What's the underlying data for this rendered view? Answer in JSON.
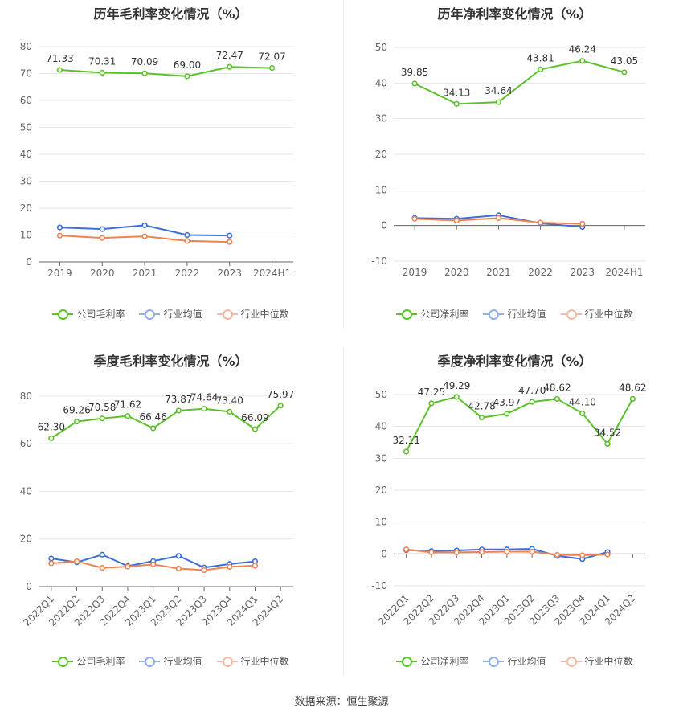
{
  "colors": {
    "company": "#5cc22b",
    "avg": "#3a6fd8",
    "median": "#f08250",
    "avg_legend": "#8fb0ee",
    "median_legend": "#f5b8a0"
  },
  "source": "数据来源：恒生聚源",
  "chart_data": [
    {
      "type": "line",
      "title": "历年毛利率变化情况（%）",
      "categories": [
        "2019",
        "2020",
        "2021",
        "2022",
        "2023",
        "2024H1"
      ],
      "ylim": [
        0,
        80
      ],
      "yticks": [
        0,
        10,
        20,
        30,
        40,
        50,
        60,
        70,
        80
      ],
      "grid": true,
      "legend_position": "bottom",
      "series": [
        {
          "name": "公司毛利率",
          "key": "company",
          "values": [
            71.33,
            70.31,
            70.09,
            69.0,
            72.47,
            72.07
          ],
          "labels": [
            "71.33",
            "70.31",
            "70.09",
            "69.00",
            "72.47",
            "72.07"
          ]
        },
        {
          "name": "行业均值",
          "key": "avg",
          "values": [
            12.8,
            12.2,
            13.6,
            10.0,
            9.8,
            null
          ]
        },
        {
          "name": "行业中位数",
          "key": "median",
          "values": [
            9.8,
            8.9,
            9.5,
            7.8,
            7.4,
            null
          ]
        }
      ]
    },
    {
      "type": "line",
      "title": "历年净利率变化情况（%）",
      "categories": [
        "2019",
        "2020",
        "2021",
        "2022",
        "2023",
        "2024H1"
      ],
      "ylim": [
        -10,
        50
      ],
      "yticks": [
        -10,
        0,
        10,
        20,
        30,
        40,
        50
      ],
      "grid": true,
      "legend_position": "bottom",
      "series": [
        {
          "name": "公司净利率",
          "key": "company",
          "values": [
            39.85,
            34.13,
            34.64,
            43.81,
            46.24,
            43.05
          ],
          "labels": [
            "39.85",
            "34.13",
            "34.64",
            "43.81",
            "46.24",
            "43.05"
          ]
        },
        {
          "name": "行业均值",
          "key": "avg",
          "values": [
            2.1,
            1.9,
            2.9,
            0.6,
            -0.4,
            null
          ]
        },
        {
          "name": "行业中位数",
          "key": "median",
          "values": [
            1.9,
            1.4,
            2.1,
            0.8,
            0.5,
            null
          ]
        }
      ]
    },
    {
      "type": "line",
      "title": "季度毛利率变化情况（%）",
      "categories": [
        "2022Q1",
        "2022Q2",
        "2022Q3",
        "2022Q4",
        "2023Q1",
        "2023Q2",
        "2023Q3",
        "2023Q4",
        "2024Q1",
        "2024Q2"
      ],
      "ylim": [
        0,
        85
      ],
      "yticks": [
        0,
        20,
        40,
        60,
        80
      ],
      "grid": true,
      "legend_position": "bottom",
      "series": [
        {
          "name": "公司毛利率",
          "key": "company",
          "values": [
            62.3,
            69.26,
            70.58,
            71.62,
            66.46,
            73.87,
            74.64,
            73.4,
            66.09,
            75.97
          ],
          "labels": [
            "62.30",
            "69.26",
            "70.58",
            "71.62",
            "66.46",
            "73.87",
            "74.64",
            "73.40",
            "66.09",
            "75.97"
          ]
        },
        {
          "name": "行业均值",
          "key": "avg",
          "values": [
            11.8,
            10.2,
            13.4,
            8.6,
            10.7,
            12.9,
            8.0,
            9.5,
            10.6,
            null
          ]
        },
        {
          "name": "行业中位数",
          "key": "median",
          "values": [
            9.8,
            10.6,
            7.9,
            8.4,
            9.3,
            7.6,
            6.9,
            8.3,
            8.8,
            null
          ]
        }
      ]
    },
    {
      "type": "line",
      "title": "季度净利率变化情况（%）",
      "categories": [
        "2022Q1",
        "2022Q2",
        "2022Q3",
        "2022Q4",
        "2023Q1",
        "2023Q2",
        "2023Q3",
        "2023Q4",
        "2024Q1",
        "2024Q2"
      ],
      "ylim": [
        -10,
        50
      ],
      "yticks": [
        -10,
        0,
        10,
        20,
        30,
        40,
        50
      ],
      "grid": true,
      "legend_position": "bottom",
      "series": [
        {
          "name": "公司净利率",
          "key": "company",
          "values": [
            32.11,
            47.25,
            49.29,
            42.78,
            43.97,
            47.7,
            48.62,
            44.1,
            34.52,
            48.62
          ],
          "labels": [
            "32.11",
            "47.25",
            "49.29",
            "42.78",
            "43.97",
            "47.70",
            "48.62",
            "44.10",
            "34.52",
            "48.62"
          ]
        },
        {
          "name": "行业均值",
          "key": "avg",
          "values": [
            1.2,
            0.9,
            1.1,
            1.4,
            1.4,
            1.6,
            -0.6,
            -1.6,
            0.6,
            null
          ]
        },
        {
          "name": "行业中位数",
          "key": "median",
          "values": [
            1.4,
            0.5,
            0.5,
            0.6,
            0.7,
            0.7,
            -0.3,
            -0.4,
            -0.2,
            null
          ]
        }
      ]
    }
  ]
}
